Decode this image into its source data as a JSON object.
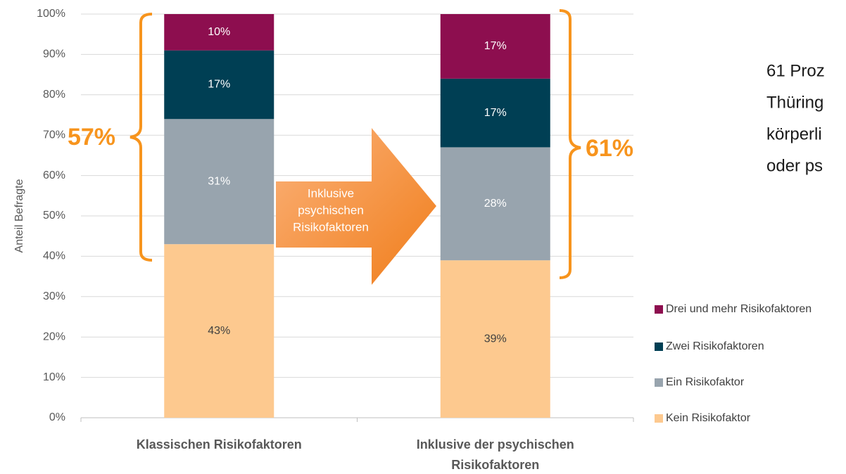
{
  "chart_data": {
    "type": "stacked_bar",
    "y_label": "Anteil Befragte",
    "categories": [
      "Klassischen Risikofaktoren",
      "Inklusive der psychischen Risikofaktoren"
    ],
    "series": [
      {
        "name": "Kein Risikofaktor",
        "color": "#fdc98f",
        "values": [
          43,
          39
        ],
        "value_labels": [
          "43%",
          "39%"
        ]
      },
      {
        "name": "Ein Risikofaktor",
        "color": "#98a4ae",
        "values": [
          31,
          28
        ],
        "value_labels": [
          "31%",
          "28%"
        ]
      },
      {
        "name": "Zwei Risikofaktoren",
        "color": "#003f54",
        "values": [
          17,
          17
        ],
        "value_labels": [
          "17%",
          "17%"
        ]
      },
      {
        "name": "Drei und mehr Risikofaktoren",
        "color": "#8d0e4f",
        "values": [
          10,
          17
        ],
        "value_labels": [
          "10%",
          "17%"
        ]
      }
    ],
    "ylim": [
      0,
      100
    ],
    "yticks": [
      {
        "value": 0,
        "label": "0%"
      },
      {
        "value": 10,
        "label": "10%"
      },
      {
        "value": 20,
        "label": "20%"
      },
      {
        "value": 30,
        "label": "30%"
      },
      {
        "value": 40,
        "label": "40%"
      },
      {
        "value": 50,
        "label": "50%"
      },
      {
        "value": 60,
        "label": "60%"
      },
      {
        "value": 70,
        "label": "70%"
      },
      {
        "value": 80,
        "label": "80%"
      },
      {
        "value": 90,
        "label": "90%"
      },
      {
        "value": 100,
        "label": "100%"
      }
    ],
    "grid": true,
    "annotations": [
      "57%",
      "61%",
      "Inklusive psychischen Risikofaktoren"
    ],
    "side_text": [
      "61 Proz",
      "Thüring",
      "körperli",
      "oder ps"
    ]
  }
}
